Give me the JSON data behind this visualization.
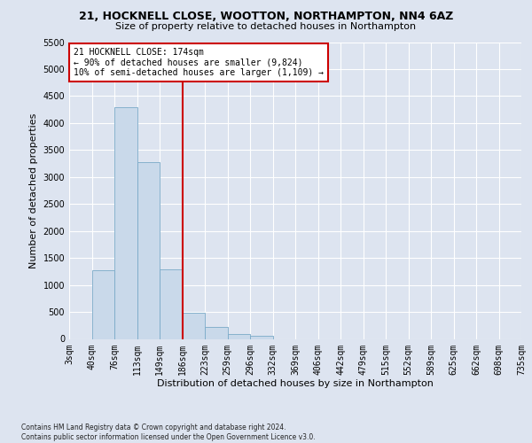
{
  "title_line1": "21, HOCKNELL CLOSE, WOOTTON, NORTHAMPTON, NN4 6AZ",
  "title_line2": "Size of property relative to detached houses in Northampton",
  "xlabel": "Distribution of detached houses by size in Northampton",
  "ylabel": "Number of detached properties",
  "footnote": "Contains HM Land Registry data © Crown copyright and database right 2024.\nContains public sector information licensed under the Open Government Licence v3.0.",
  "bin_labels": [
    "3sqm",
    "40sqm",
    "76sqm",
    "113sqm",
    "149sqm",
    "186sqm",
    "223sqm",
    "259sqm",
    "296sqm",
    "332sqm",
    "369sqm",
    "406sqm",
    "442sqm",
    "479sqm",
    "515sqm",
    "552sqm",
    "589sqm",
    "625sqm",
    "662sqm",
    "698sqm",
    "735sqm"
  ],
  "bar_values": [
    0,
    1270,
    4300,
    3280,
    1285,
    480,
    215,
    85,
    55,
    0,
    0,
    0,
    0,
    0,
    0,
    0,
    0,
    0,
    0,
    0
  ],
  "bar_color": "#c9d9ea",
  "bar_edge_color": "#7aaac8",
  "vline_x_index": 5,
  "vline_color": "#cc0000",
  "annotation_text": "21 HOCKNELL CLOSE: 174sqm\n← 90% of detached houses are smaller (9,824)\n10% of semi-detached houses are larger (1,109) →",
  "annotation_box_color": "white",
  "annotation_box_edge_color": "#cc0000",
  "ylim": [
    0,
    5500
  ],
  "yticks": [
    0,
    500,
    1000,
    1500,
    2000,
    2500,
    3000,
    3500,
    4000,
    4500,
    5000,
    5500
  ],
  "bg_color": "#dde4f0",
  "plot_bg_color": "#dde4f0",
  "grid_color": "white",
  "title_fontsize": 9,
  "subtitle_fontsize": 8,
  "ylabel_fontsize": 8,
  "xlabel_fontsize": 8,
  "tick_fontsize": 7,
  "annot_fontsize": 7
}
